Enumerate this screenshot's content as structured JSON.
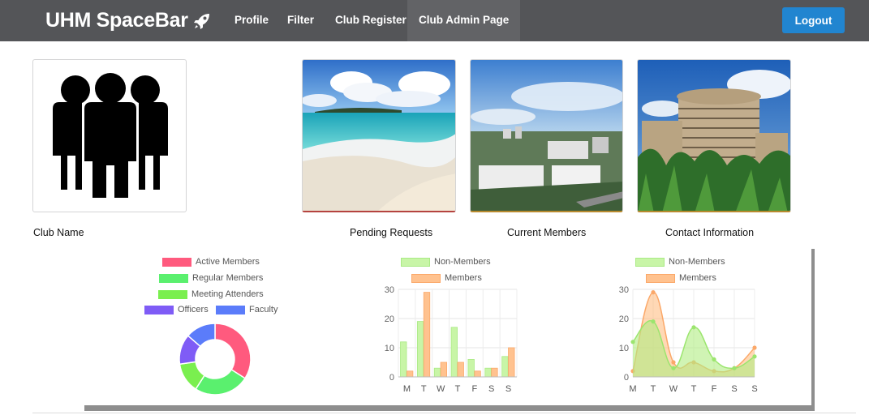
{
  "navbar": {
    "brand": "UHM SpaceBar",
    "items": [
      {
        "label": "Profile",
        "active": false
      },
      {
        "label": "Filter",
        "active": false
      },
      {
        "label": "Club Register",
        "active": false
      },
      {
        "label": "Club Admin Page",
        "active": true
      }
    ],
    "logout_label": "Logout"
  },
  "cards": [
    {
      "label": "Club Name",
      "image": "group-of-people-icon"
    },
    {
      "label": "Pending Requests",
      "image": "beach-photo"
    },
    {
      "label": "Current Members",
      "image": "city-view-photo"
    },
    {
      "label": "Contact Information",
      "image": "round-tower-building-photo"
    }
  ],
  "colors": {
    "navbar": "#545558",
    "navbar_active": "#626366",
    "logout": "#2185d0",
    "active_members": "#ff5a7e",
    "regular_members": "#5af06e",
    "meeting_attenders": "#7aef4f",
    "officers": "#7f5cf6",
    "faculty": "#5b7cfa",
    "non_members": "#c8f5a7",
    "members": "#ffc28f"
  },
  "chart_data": [
    {
      "type": "pie",
      "variant": "doughnut",
      "labels": [
        "Active Members",
        "Regular Members",
        "Meeting Attenders",
        "Officers",
        "Faculty"
      ],
      "values": [
        30,
        22,
        12,
        12,
        12
      ],
      "legend": "top"
    },
    {
      "type": "bar",
      "categories": [
        "M",
        "T",
        "W",
        "T",
        "F",
        "S",
        "S"
      ],
      "series": [
        {
          "name": "Non-Members",
          "values": [
            12,
            19,
            3,
            17,
            6,
            3,
            7
          ]
        },
        {
          "name": "Members",
          "values": [
            2,
            29,
            5,
            5,
            2,
            3,
            10
          ]
        }
      ],
      "ylim": [
        0,
        30
      ],
      "yticks": [
        0,
        10,
        20,
        30
      ],
      "grid": true,
      "legend": "top"
    },
    {
      "type": "area",
      "categories": [
        "M",
        "T",
        "W",
        "T",
        "F",
        "S",
        "S"
      ],
      "series": [
        {
          "name": "Non-Members",
          "values": [
            12,
            19,
            3,
            17,
            6,
            3,
            7
          ]
        },
        {
          "name": "Members",
          "values": [
            2,
            29,
            5,
            5,
            2,
            3,
            10
          ]
        }
      ],
      "ylim": [
        0,
        30
      ],
      "yticks": [
        0,
        10,
        20,
        30
      ],
      "grid": true,
      "legend": "top"
    }
  ]
}
